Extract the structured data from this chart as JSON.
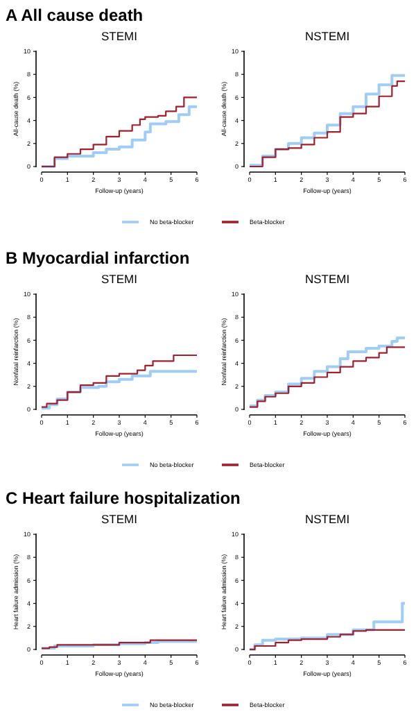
{
  "chart_data": [
    {
      "type": "step",
      "subtitle": "A  All cause death",
      "title": "STEMI",
      "xlabel": "Follow-up (years)",
      "ylabel": "All-cause death (%)",
      "xlim": [
        0,
        6
      ],
      "ylim": [
        0,
        10
      ],
      "xticks": [
        0,
        1,
        2,
        3,
        4,
        5,
        6
      ],
      "yticks": [
        0,
        2,
        4,
        6,
        8,
        10
      ],
      "legend": "bottom",
      "series": [
        {
          "name": "No beta-blocker",
          "color": "#9fcdf5",
          "x": [
            0,
            0.5,
            1,
            2,
            2.5,
            3,
            3.5,
            4,
            4.2,
            4.8,
            5.3,
            5.7,
            6
          ],
          "values": [
            0,
            0.7,
            0.9,
            1.2,
            1.5,
            1.7,
            2.3,
            3.0,
            3.7,
            3.9,
            4.5,
            5.2,
            5.2
          ]
        },
        {
          "name": "Beta-blocker",
          "color": "#a0202e",
          "x": [
            0,
            0.5,
            1,
            1.5,
            2,
            2.5,
            3,
            3.5,
            3.8,
            4,
            4.5,
            4.8,
            5,
            5.2,
            5.5,
            6
          ],
          "values": [
            0,
            0.8,
            1.1,
            1.5,
            1.9,
            2.6,
            3.1,
            3.6,
            4.1,
            4.3,
            4.4,
            4.8,
            4.8,
            5.2,
            6.0,
            6.0
          ]
        }
      ]
    },
    {
      "type": "step",
      "title": "NSTEMI",
      "xlabel": "Follow-up (years)",
      "ylabel": "All-cause death (%)",
      "xlim": [
        0,
        6
      ],
      "ylim": [
        0,
        10
      ],
      "xticks": [
        0,
        1,
        2,
        3,
        4,
        5,
        6
      ],
      "yticks": [
        0,
        2,
        4,
        6,
        8,
        10
      ],
      "series": [
        {
          "color": "#9fcdf5",
          "x": [
            0,
            0.5,
            1,
            1.5,
            2,
            2.5,
            3,
            3.5,
            4,
            4.5,
            5,
            5.5,
            6
          ],
          "values": [
            0.1,
            0.9,
            1.5,
            2.0,
            2.5,
            2.9,
            3.6,
            4.6,
            5.2,
            6.3,
            7.1,
            7.9,
            7.9
          ]
        },
        {
          "color": "#a0202e",
          "x": [
            0,
            0.5,
            1,
            1.5,
            2,
            2.5,
            3,
            3.5,
            4,
            4.5,
            5,
            5.5,
            5.7,
            6
          ],
          "values": [
            0,
            0.8,
            1.5,
            1.6,
            1.9,
            2.5,
            3.0,
            4.3,
            4.6,
            5.2,
            6.1,
            7.0,
            7.4,
            7.4
          ]
        }
      ]
    },
    {
      "type": "step",
      "subtitle": "B  Myocardial infarction",
      "title": "STEMI",
      "xlabel": "Follow-up (years)",
      "ylabel": "Nonfatal reinfarction (%)",
      "xlim": [
        0,
        6
      ],
      "ylim": [
        0,
        10
      ],
      "xticks": [
        0,
        1,
        2,
        3,
        4,
        5,
        6
      ],
      "yticks": [
        0,
        2,
        4,
        6,
        8,
        10
      ],
      "legend": "bottom",
      "series": [
        {
          "name": "No beta-blocker",
          "color": "#9fcdf5",
          "x": [
            0,
            0.3,
            0.6,
            1,
            1.5,
            2.2,
            2.5,
            3,
            3.5,
            4.2,
            6
          ],
          "values": [
            0.1,
            0.4,
            0.9,
            1.5,
            1.9,
            2.0,
            2.4,
            2.6,
            2.9,
            3.3,
            3.3
          ]
        },
        {
          "name": "Beta-blocker",
          "color": "#a0202e",
          "x": [
            0,
            0.2,
            0.6,
            1,
            1.5,
            2,
            2.5,
            3,
            3.7,
            4,
            4.3,
            5.1,
            6
          ],
          "values": [
            0.2,
            0.5,
            0.8,
            1.5,
            2.1,
            2.3,
            2.9,
            3.1,
            3.4,
            3.8,
            4.2,
            4.7,
            4.7
          ]
        }
      ]
    },
    {
      "type": "step",
      "title": "NSTEMI",
      "xlabel": "Follow-up (years)",
      "ylabel": "Nonfatal reinfarction (%)",
      "xlim": [
        0,
        6
      ],
      "ylim": [
        0,
        10
      ],
      "xticks": [
        0,
        1,
        2,
        3,
        4,
        5,
        6
      ],
      "yticks": [
        0,
        2,
        4,
        6,
        8,
        10
      ],
      "series": [
        {
          "color": "#9fcdf5",
          "x": [
            0,
            0.3,
            0.6,
            1,
            1.5,
            2,
            2.5,
            3,
            3.5,
            3.8,
            4.5,
            5,
            5.5,
            5.7,
            6
          ],
          "values": [
            0.3,
            0.8,
            1.2,
            1.5,
            2.2,
            2.7,
            3.3,
            3.7,
            4.4,
            5.0,
            5.3,
            5.5,
            5.9,
            6.2,
            6.2
          ]
        },
        {
          "color": "#a0202e",
          "x": [
            0,
            0.3,
            0.6,
            1,
            1.5,
            2,
            2.5,
            3,
            3.5,
            4,
            4.5,
            5,
            5.3,
            6
          ],
          "values": [
            0.2,
            0.7,
            1.1,
            1.4,
            2.0,
            2.3,
            2.8,
            3.2,
            3.7,
            4.2,
            4.5,
            4.9,
            5.4,
            5.4
          ]
        }
      ]
    },
    {
      "type": "step",
      "subtitle": "C  Heart failure hospitalization",
      "title": "STEMI",
      "xlabel": "Follow-up (years)",
      "ylabel": "Heart failure admission (%)",
      "xlim": [
        0,
        6
      ],
      "ylim": [
        0,
        10
      ],
      "xticks": [
        0,
        1,
        2,
        3,
        4,
        5,
        6
      ],
      "yticks": [
        0,
        2,
        4,
        6,
        8,
        10
      ],
      "legend": "bottom",
      "series": [
        {
          "name": "No beta-blocker",
          "color": "#9fcdf5",
          "x": [
            0,
            0.5,
            1,
            2,
            3,
            4,
            4.5,
            6
          ],
          "values": [
            0.1,
            0.3,
            0.3,
            0.4,
            0.5,
            0.6,
            0.7,
            0.7
          ]
        },
        {
          "name": "Beta-blocker",
          "color": "#a0202e",
          "x": [
            0,
            0.3,
            0.6,
            1.5,
            3,
            4.2,
            6
          ],
          "values": [
            0.1,
            0.2,
            0.4,
            0.4,
            0.6,
            0.8,
            0.8
          ]
        }
      ]
    },
    {
      "type": "step",
      "title": "NSTEMI",
      "xlabel": "Follow-up (years)",
      "ylabel": "Heart failure admission (%)",
      "xlim": [
        0,
        6
      ],
      "ylim": [
        0,
        10
      ],
      "xticks": [
        0,
        1,
        2,
        3,
        4,
        5,
        6
      ],
      "yticks": [
        0,
        2,
        4,
        6,
        8,
        10
      ],
      "series": [
        {
          "color": "#9fcdf5",
          "x": [
            0,
            0.2,
            0.5,
            1,
            2,
            3,
            4,
            4.8,
            5.9,
            6
          ],
          "values": [
            0,
            0.4,
            0.8,
            0.9,
            1.0,
            1.3,
            1.7,
            2.4,
            4.0,
            4.0
          ]
        },
        {
          "color": "#a0202e",
          "x": [
            0,
            0.2,
            0.5,
            1,
            1.5,
            2,
            3,
            3.5,
            4,
            4.5,
            6
          ],
          "values": [
            0,
            0.3,
            0.3,
            0.6,
            0.8,
            0.9,
            1.1,
            1.3,
            1.6,
            1.7,
            1.7
          ]
        }
      ]
    }
  ]
}
